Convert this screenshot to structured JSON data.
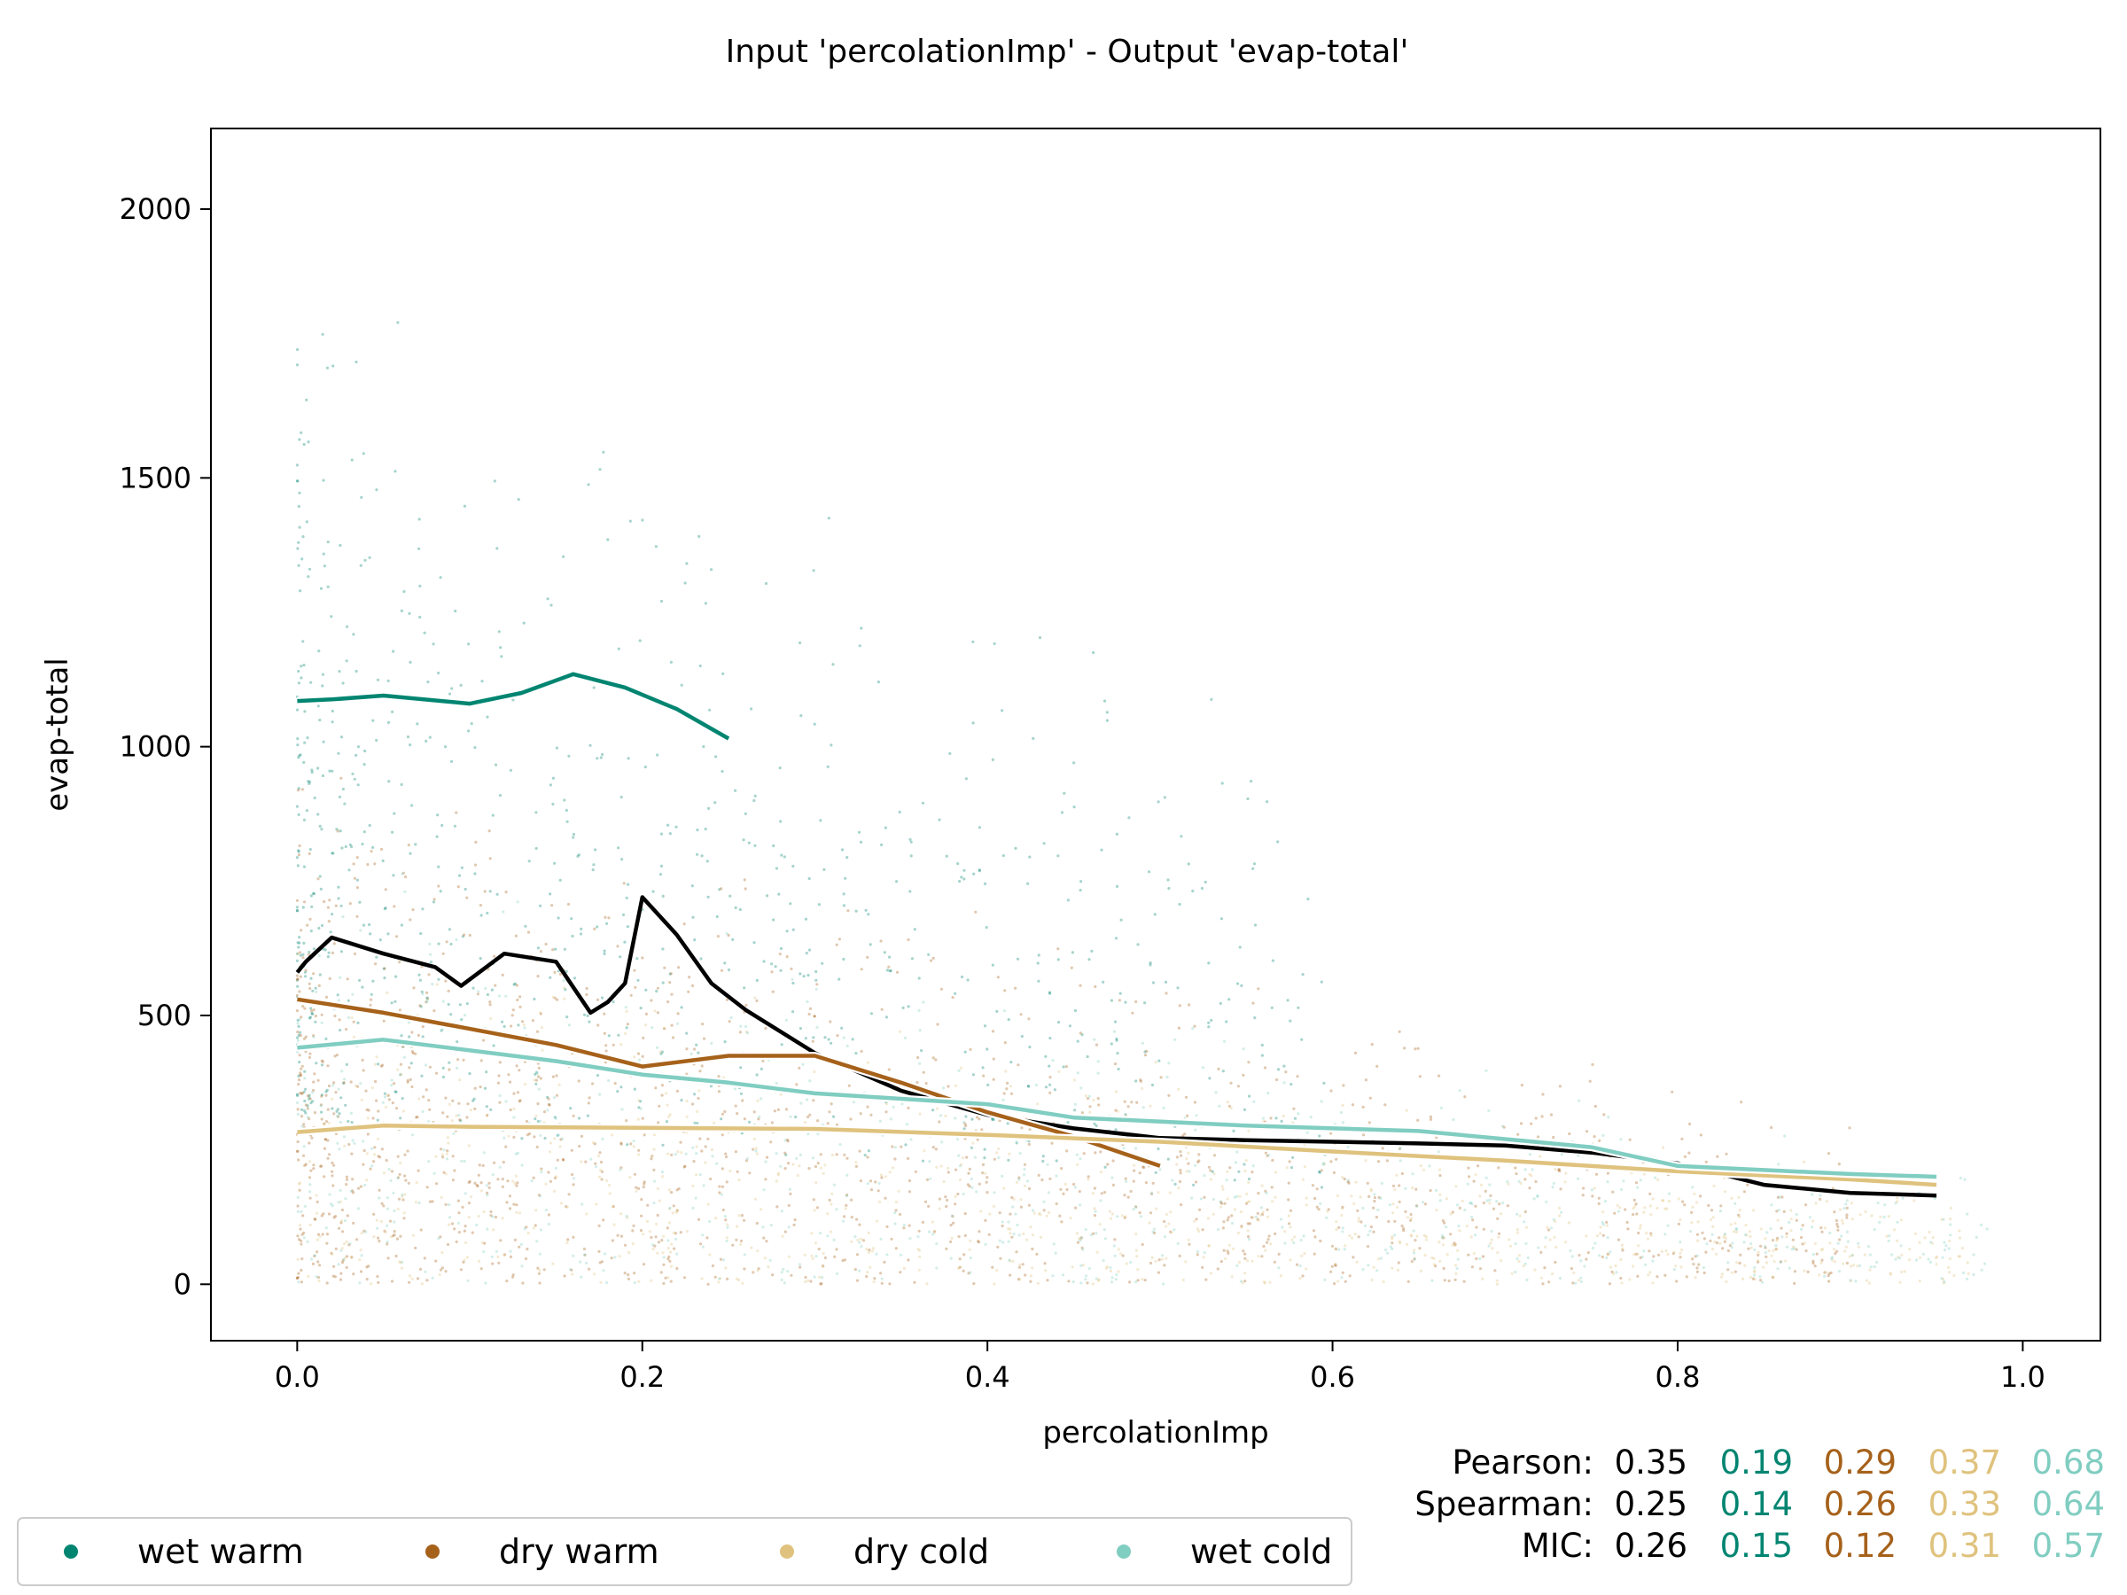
{
  "chart_data": {
    "type": "scatter",
    "title": "Input 'percolationImp' - Output 'evap-total'",
    "xlabel": "percolationImp",
    "ylabel": "evap-total",
    "xlim": [
      -0.05,
      1.045
    ],
    "ylim": [
      -105,
      2150
    ],
    "xticks": [
      {
        "value": 0.0,
        "label": "0.0"
      },
      {
        "value": 0.2,
        "label": "0.2"
      },
      {
        "value": 0.4,
        "label": "0.4"
      },
      {
        "value": 0.6,
        "label": "0.6"
      },
      {
        "value": 0.8,
        "label": "0.8"
      },
      {
        "value": 1.0,
        "label": "1.0"
      }
    ],
    "yticks": [
      {
        "value": 0,
        "label": "0"
      },
      {
        "value": 500,
        "label": "500"
      },
      {
        "value": 1000,
        "label": "1000"
      },
      {
        "value": 1500,
        "label": "1500"
      },
      {
        "value": 2000,
        "label": "2000"
      }
    ],
    "grid": false,
    "legend_position": "bottom-left",
    "series": [
      {
        "name": "wet warm",
        "color": "#018571"
      },
      {
        "name": "dry warm",
        "color": "#a6611a"
      },
      {
        "name": "dry cold",
        "color": "#dfc27d"
      },
      {
        "name": "wet cold",
        "color": "#80cdc1"
      }
    ],
    "trend_lines": [
      {
        "series": "all",
        "color": "#000000",
        "x": [
          0.0,
          0.005,
          0.02,
          0.05,
          0.08,
          0.095,
          0.12,
          0.15,
          0.17,
          0.18,
          0.19,
          0.2,
          0.22,
          0.24,
          0.26,
          0.3,
          0.35,
          0.4,
          0.45,
          0.5,
          0.55,
          0.6,
          0.65,
          0.7,
          0.75,
          0.8,
          0.85,
          0.9,
          0.95
        ],
        "y": [
          580,
          600,
          645,
          615,
          590,
          555,
          615,
          600,
          505,
          525,
          560,
          720,
          650,
          560,
          510,
          430,
          360,
          315,
          290,
          272,
          268,
          265,
          262,
          258,
          245,
          225,
          185,
          170,
          165
        ]
      },
      {
        "series": "wet warm",
        "color": "#018571",
        "x": [
          0.0,
          0.02,
          0.05,
          0.1,
          0.13,
          0.16,
          0.19,
          0.22,
          0.25
        ],
        "y": [
          1085,
          1088,
          1095,
          1080,
          1100,
          1135,
          1110,
          1070,
          1015
        ]
      },
      {
        "series": "dry warm",
        "color": "#a6611a",
        "x": [
          0.0,
          0.05,
          0.1,
          0.15,
          0.2,
          0.25,
          0.3,
          0.35,
          0.4,
          0.45,
          0.5
        ],
        "y": [
          530,
          505,
          475,
          445,
          405,
          425,
          425,
          375,
          320,
          275,
          220
        ]
      },
      {
        "series": "dry cold",
        "color": "#dfc27d",
        "x": [
          0.0,
          0.05,
          0.1,
          0.2,
          0.3,
          0.4,
          0.5,
          0.6,
          0.7,
          0.8,
          0.9,
          0.95
        ],
        "y": [
          283,
          295,
          293,
          291,
          289,
          278,
          265,
          247,
          230,
          210,
          195,
          185
        ]
      },
      {
        "series": "wet cold",
        "color": "#80cdc1",
        "x": [
          0.0,
          0.05,
          0.1,
          0.15,
          0.2,
          0.25,
          0.3,
          0.35,
          0.4,
          0.45,
          0.55,
          0.65,
          0.7,
          0.75,
          0.8,
          0.9,
          0.95
        ],
        "y": [
          440,
          455,
          435,
          415,
          390,
          375,
          355,
          345,
          335,
          310,
          295,
          285,
          270,
          255,
          220,
          205,
          200
        ]
      }
    ],
    "statistics": [
      {
        "label": "Pearson:",
        "all": "0.35",
        "values": [
          "0.19",
          "0.29",
          "0.37",
          "0.68"
        ]
      },
      {
        "label": "Spearman:",
        "all": "0.25",
        "values": [
          "0.14",
          "0.26",
          "0.33",
          "0.64"
        ]
      },
      {
        "label": "MIC:",
        "all": "0.26",
        "values": [
          "0.15",
          "0.12",
          "0.31",
          "0.57"
        ]
      }
    ]
  }
}
